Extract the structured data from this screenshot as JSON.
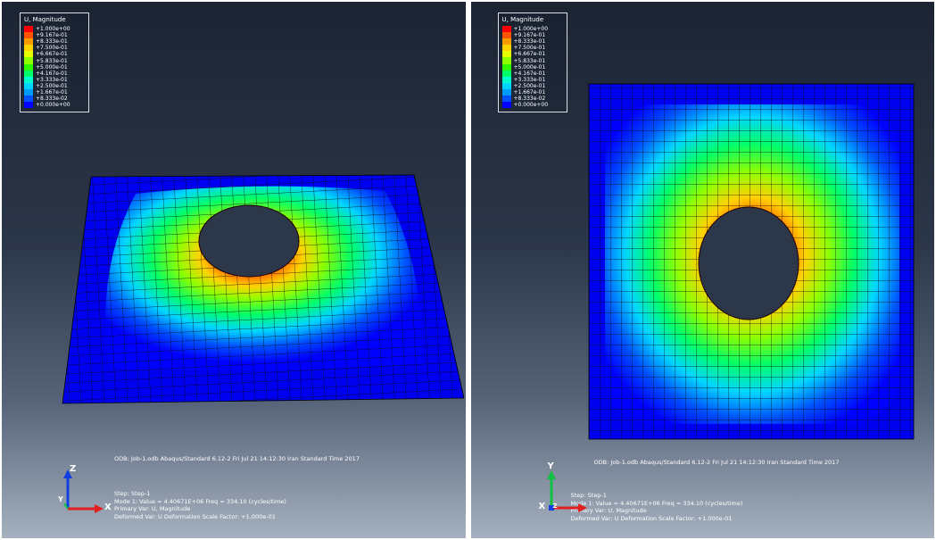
{
  "colors": {
    "contour": [
      "#0000ff",
      "#0050ff",
      "#009aff",
      "#00d6ff",
      "#00ffcc",
      "#00ff6a",
      "#2dff00",
      "#8fff00",
      "#e6ff00",
      "#ffd200",
      "#ff9b00",
      "#ff5400",
      "#ff0000"
    ],
    "axis_x": "#e02020",
    "axis_y": "#10c040",
    "axis_z": "#1040e0"
  },
  "views": [
    {
      "legend": {
        "title": "U, Magnitude",
        "values": [
          "+1.000e+00",
          "+9.167e-01",
          "+8.333e-01",
          "+7.500e-01",
          "+6.667e-01",
          "+5.833e-01",
          "+5.000e-01",
          "+4.167e-01",
          "+3.333e-01",
          "+2.500e-01",
          "+1.667e-01",
          "+8.333e-02",
          "+0.000e+00"
        ]
      },
      "odb_line": "ODB: Job-1.odb    Abaqus/Standard 6.12-2    Fri Jul 21 14:12:30 Iran Standard Time 2017",
      "info": {
        "step": "Step: Step-1",
        "mode": "Mode       1: Value =  4.40671E+06 Freq =    334.10    (cycles/time)",
        "primary_var": "Primary Var: U, Magnitude",
        "deformed_var": "Deformed Var: U   Deformation Scale Factor: +1.000e-01"
      },
      "triad": {
        "vertical": "Z",
        "horizontal": "X",
        "depth": "Y"
      }
    },
    {
      "legend": {
        "title": "U, Magnitude",
        "values": [
          "+1.000e+00",
          "+9.167e-01",
          "+8.333e-01",
          "+7.500e-01",
          "+6.667e-01",
          "+5.833e-01",
          "+5.000e-01",
          "+4.167e-01",
          "+3.333e-01",
          "+2.500e-01",
          "+1.667e-01",
          "+8.333e-02",
          "+0.000e+00"
        ]
      },
      "odb_line": "ODB: Job-1.odb    Abaqus/Standard 6.12-2    Fri Jul 21 14:12:30 Iran Standard Time 2017",
      "info": {
        "step": "Step: Step-1",
        "mode": "Mode       1: Value =  4.40671E+06 Freq =    334.10    (cycles/time)",
        "primary_var": "Primary Var: U, Magnitude",
        "deformed_var": "Deformed Var: U   Deformation Scale Factor: +1.000e-01"
      },
      "triad": {
        "vertical": "Y",
        "horizontal": "X",
        "depth": "Z"
      }
    }
  ]
}
